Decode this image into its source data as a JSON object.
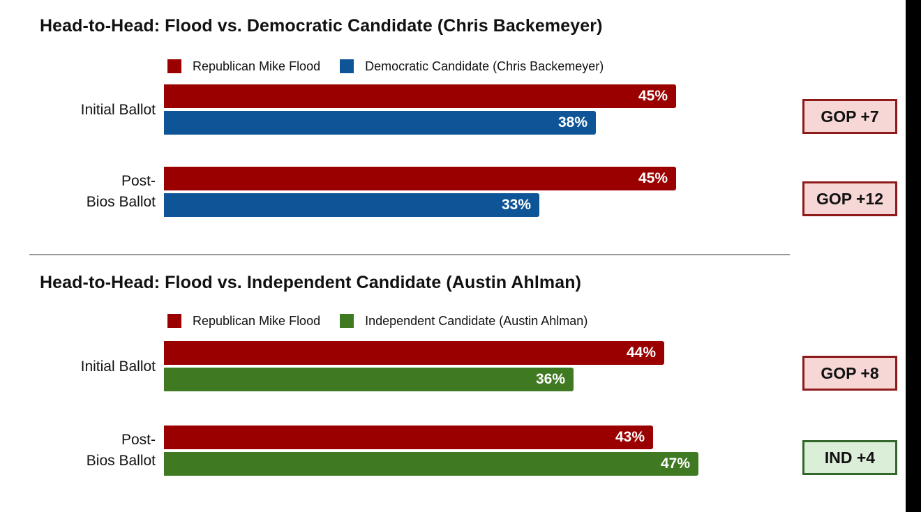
{
  "colors": {
    "republican": "#9b0000",
    "democratic": "#0d5596",
    "independent": "#3f7a22",
    "gop_box_bg": "#f6d7d5",
    "gop_box_border": "#8e1a1a",
    "ind_box_bg": "#dbeed7",
    "ind_box_border": "#33682b"
  },
  "chart_data": [
    {
      "type": "bar",
      "orientation": "horizontal",
      "title": "Head-to-Head: Flood vs. Democratic Candidate (Chris Backemeyer)",
      "legend_position": "top",
      "categories": [
        "Initial Ballot",
        "Post-Bios Ballot"
      ],
      "category_lines": [
        [
          "Initial Ballot"
        ],
        [
          "Post-",
          "Bios Ballot"
        ]
      ],
      "series": [
        {
          "name": "Republican Mike Flood",
          "values": [
            45,
            45
          ],
          "labels": [
            "45%",
            "45%"
          ],
          "color_key": "republican"
        },
        {
          "name": "Democratic Candidate (Chris Backemeyer)",
          "values": [
            38,
            33
          ],
          "labels": [
            "38%",
            "33%"
          ],
          "color_key": "democratic"
        }
      ],
      "margins": [
        {
          "label": "GOP +7",
          "party": "gop"
        },
        {
          "label": "GOP +12",
          "party": "gop"
        }
      ],
      "xlim": [
        0,
        50
      ]
    },
    {
      "type": "bar",
      "orientation": "horizontal",
      "title": "Head-to-Head: Flood vs. Independent Candidate (Austin Ahlman)",
      "legend_position": "top",
      "categories": [
        "Initial Ballot",
        "Post-Bios Ballot"
      ],
      "category_lines": [
        [
          "Initial Ballot"
        ],
        [
          "Post-",
          "Bios Ballot"
        ]
      ],
      "series": [
        {
          "name": "Republican Mike Flood",
          "values": [
            44,
            43
          ],
          "labels": [
            "44%",
            "43%"
          ],
          "color_key": "republican"
        },
        {
          "name": "Independent Candidate (Austin Ahlman)",
          "values": [
            36,
            47
          ],
          "labels": [
            "36%",
            "47%"
          ],
          "color_key": "independent"
        }
      ],
      "margins": [
        {
          "label": "GOP +8",
          "party": "gop"
        },
        {
          "label": "IND +4",
          "party": "ind"
        }
      ],
      "xlim": [
        0,
        50
      ]
    }
  ]
}
